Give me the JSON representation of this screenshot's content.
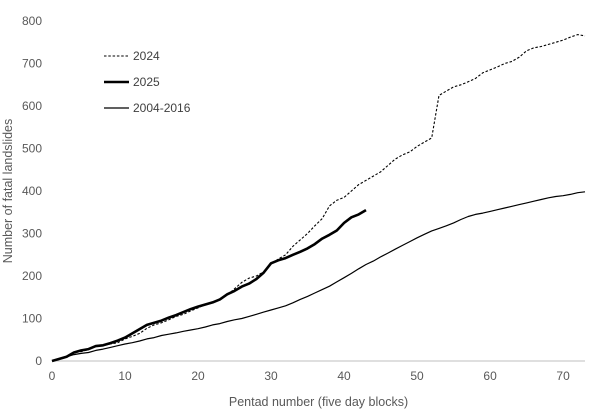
{
  "chart_data": {
    "type": "line",
    "title": "",
    "xlabel": "Pentad number (five day blocks)",
    "ylabel": "Number of fatal landslides",
    "xlim": [
      0,
      73
    ],
    "ylim": [
      0,
      800
    ],
    "xticks": [
      0,
      10,
      20,
      30,
      40,
      50,
      60,
      70
    ],
    "yticks": [
      0,
      100,
      200,
      300,
      400,
      500,
      600,
      700,
      800
    ],
    "grid": false,
    "legend_placement": "top-left",
    "series": [
      {
        "name": "2024",
        "style": "dotted",
        "color": "#000000",
        "points": [
          [
            0,
            0
          ],
          [
            1,
            5
          ],
          [
            2,
            10
          ],
          [
            3,
            20
          ],
          [
            4,
            22
          ],
          [
            5,
            27
          ],
          [
            6,
            35
          ],
          [
            7,
            37
          ],
          [
            8,
            40
          ],
          [
            9,
            43
          ],
          [
            10,
            52
          ],
          [
            11,
            58
          ],
          [
            12,
            65
          ],
          [
            13,
            77
          ],
          [
            14,
            85
          ],
          [
            15,
            90
          ],
          [
            16,
            97
          ],
          [
            17,
            105
          ],
          [
            18,
            110
          ],
          [
            19,
            118
          ],
          [
            20,
            125
          ],
          [
            21,
            133
          ],
          [
            22,
            137
          ],
          [
            23,
            145
          ],
          [
            24,
            155
          ],
          [
            25,
            170
          ],
          [
            26,
            185
          ],
          [
            27,
            195
          ],
          [
            28,
            200
          ],
          [
            29,
            210
          ],
          [
            30,
            228
          ],
          [
            31,
            240
          ],
          [
            32,
            250
          ],
          [
            33,
            270
          ],
          [
            34,
            285
          ],
          [
            35,
            300
          ],
          [
            36,
            318
          ],
          [
            37,
            335
          ],
          [
            38,
            365
          ],
          [
            39,
            378
          ],
          [
            40,
            385
          ],
          [
            41,
            400
          ],
          [
            42,
            415
          ],
          [
            43,
            425
          ],
          [
            44,
            435
          ],
          [
            45,
            445
          ],
          [
            46,
            460
          ],
          [
            47,
            475
          ],
          [
            48,
            485
          ],
          [
            49,
            492
          ],
          [
            50,
            505
          ],
          [
            51,
            515
          ],
          [
            52,
            525
          ],
          [
            53,
            625
          ],
          [
            54,
            635
          ],
          [
            55,
            645
          ],
          [
            56,
            650
          ],
          [
            57,
            657
          ],
          [
            58,
            665
          ],
          [
            59,
            678
          ],
          [
            60,
            685
          ],
          [
            61,
            692
          ],
          [
            62,
            700
          ],
          [
            63,
            705
          ],
          [
            64,
            715
          ],
          [
            65,
            730
          ],
          [
            66,
            737
          ],
          [
            67,
            740
          ],
          [
            68,
            745
          ],
          [
            69,
            750
          ],
          [
            70,
            755
          ],
          [
            71,
            762
          ],
          [
            72,
            768
          ],
          [
            73,
            765
          ]
        ]
      },
      {
        "name": "2025",
        "style": "bold",
        "color": "#000000",
        "points": [
          [
            0,
            0
          ],
          [
            1,
            5
          ],
          [
            2,
            10
          ],
          [
            3,
            20
          ],
          [
            4,
            25
          ],
          [
            5,
            28
          ],
          [
            6,
            35
          ],
          [
            7,
            37
          ],
          [
            8,
            42
          ],
          [
            9,
            48
          ],
          [
            10,
            55
          ],
          [
            11,
            65
          ],
          [
            12,
            75
          ],
          [
            13,
            85
          ],
          [
            14,
            90
          ],
          [
            15,
            95
          ],
          [
            16,
            102
          ],
          [
            17,
            108
          ],
          [
            18,
            115
          ],
          [
            19,
            122
          ],
          [
            20,
            128
          ],
          [
            21,
            133
          ],
          [
            22,
            138
          ],
          [
            23,
            145
          ],
          [
            24,
            157
          ],
          [
            25,
            165
          ],
          [
            26,
            175
          ],
          [
            27,
            182
          ],
          [
            28,
            193
          ],
          [
            29,
            208
          ],
          [
            30,
            230
          ],
          [
            31,
            237
          ],
          [
            32,
            242
          ],
          [
            33,
            250
          ],
          [
            34,
            257
          ],
          [
            35,
            265
          ],
          [
            36,
            275
          ],
          [
            37,
            288
          ],
          [
            38,
            297
          ],
          [
            39,
            307
          ],
          [
            40,
            325
          ],
          [
            41,
            338
          ],
          [
            42,
            345
          ],
          [
            43,
            355
          ]
        ]
      },
      {
        "name": "2004-2016",
        "style": "solid",
        "color": "#000000",
        "points": [
          [
            0,
            0
          ],
          [
            1,
            5
          ],
          [
            2,
            10
          ],
          [
            3,
            15
          ],
          [
            4,
            18
          ],
          [
            5,
            20
          ],
          [
            6,
            25
          ],
          [
            7,
            28
          ],
          [
            8,
            32
          ],
          [
            9,
            36
          ],
          [
            10,
            40
          ],
          [
            11,
            43
          ],
          [
            12,
            47
          ],
          [
            13,
            52
          ],
          [
            14,
            55
          ],
          [
            15,
            60
          ],
          [
            16,
            63
          ],
          [
            17,
            66
          ],
          [
            18,
            70
          ],
          [
            19,
            73
          ],
          [
            20,
            76
          ],
          [
            21,
            80
          ],
          [
            22,
            85
          ],
          [
            23,
            88
          ],
          [
            24,
            93
          ],
          [
            25,
            97
          ],
          [
            26,
            100
          ],
          [
            27,
            105
          ],
          [
            28,
            110
          ],
          [
            29,
            115
          ],
          [
            30,
            120
          ],
          [
            31,
            125
          ],
          [
            32,
            130
          ],
          [
            33,
            137
          ],
          [
            34,
            145
          ],
          [
            35,
            152
          ],
          [
            36,
            160
          ],
          [
            37,
            168
          ],
          [
            38,
            176
          ],
          [
            39,
            186
          ],
          [
            40,
            196
          ],
          [
            41,
            206
          ],
          [
            42,
            217
          ],
          [
            43,
            227
          ],
          [
            44,
            235
          ],
          [
            45,
            245
          ],
          [
            46,
            254
          ],
          [
            47,
            263
          ],
          [
            48,
            272
          ],
          [
            49,
            281
          ],
          [
            50,
            290
          ],
          [
            51,
            298
          ],
          [
            52,
            306
          ],
          [
            53,
            312
          ],
          [
            54,
            318
          ],
          [
            55,
            325
          ],
          [
            56,
            333
          ],
          [
            57,
            340
          ],
          [
            58,
            345
          ],
          [
            59,
            348
          ],
          [
            60,
            352
          ],
          [
            61,
            356
          ],
          [
            62,
            360
          ],
          [
            63,
            364
          ],
          [
            64,
            368
          ],
          [
            65,
            372
          ],
          [
            66,
            376
          ],
          [
            67,
            380
          ],
          [
            68,
            384
          ],
          [
            69,
            387
          ],
          [
            70,
            389
          ],
          [
            71,
            392
          ],
          [
            72,
            396
          ],
          [
            73,
            398
          ]
        ]
      }
    ]
  }
}
